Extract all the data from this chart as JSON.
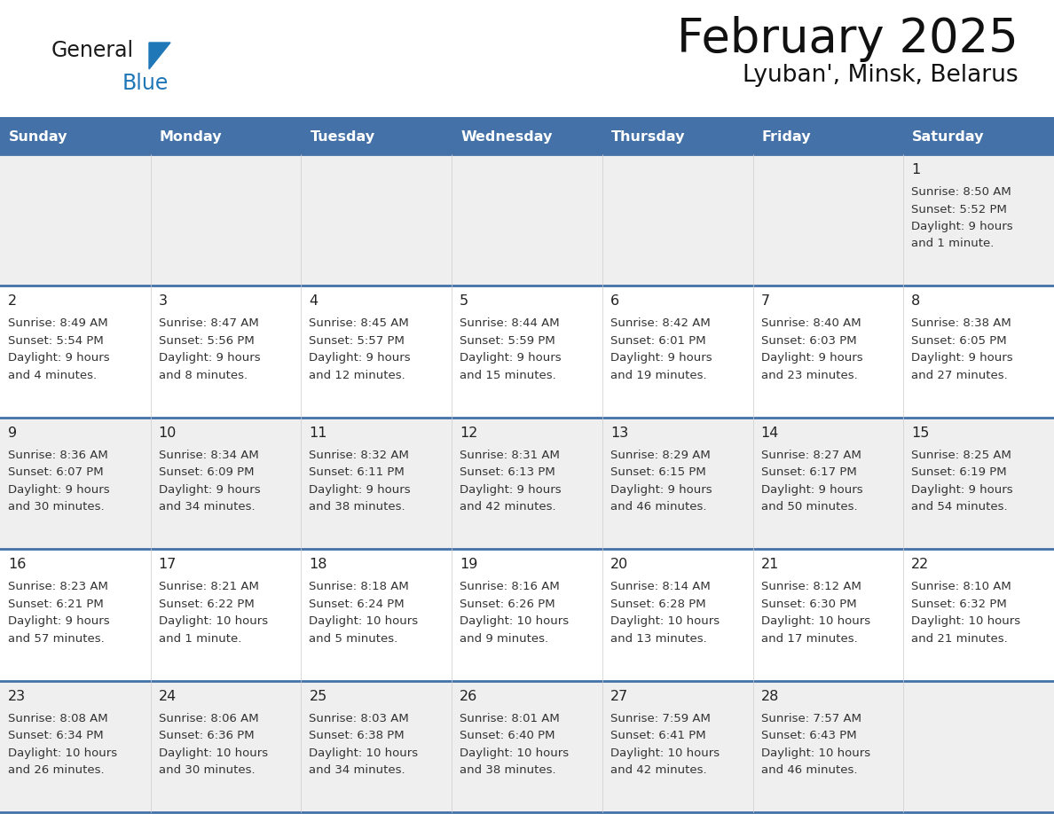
{
  "title": "February 2025",
  "subtitle": "Lyuban', Minsk, Belarus",
  "days_of_week": [
    "Sunday",
    "Monday",
    "Tuesday",
    "Wednesday",
    "Thursday",
    "Friday",
    "Saturday"
  ],
  "header_bg": "#4472a8",
  "header_text": "#ffffff",
  "row_bg_odd": "#efefef",
  "row_bg_even": "#ffffff",
  "separator_color": "#4472a8",
  "day_num_color": "#222222",
  "cell_text_color": "#333333",
  "title_color": "#111111",
  "subtitle_color": "#111111",
  "logo_general_color": "#1a1a1a",
  "logo_blue_color": "#2077b8",
  "calendar_data": [
    [
      null,
      null,
      null,
      null,
      null,
      null,
      {
        "day": "1",
        "sunrise": "8:50 AM",
        "sunset": "5:52 PM",
        "daylight_l1": "Daylight: 9 hours",
        "daylight_l2": "and 1 minute."
      }
    ],
    [
      {
        "day": "2",
        "sunrise": "8:49 AM",
        "sunset": "5:54 PM",
        "daylight_l1": "Daylight: 9 hours",
        "daylight_l2": "and 4 minutes."
      },
      {
        "day": "3",
        "sunrise": "8:47 AM",
        "sunset": "5:56 PM",
        "daylight_l1": "Daylight: 9 hours",
        "daylight_l2": "and 8 minutes."
      },
      {
        "day": "4",
        "sunrise": "8:45 AM",
        "sunset": "5:57 PM",
        "daylight_l1": "Daylight: 9 hours",
        "daylight_l2": "and 12 minutes."
      },
      {
        "day": "5",
        "sunrise": "8:44 AM",
        "sunset": "5:59 PM",
        "daylight_l1": "Daylight: 9 hours",
        "daylight_l2": "and 15 minutes."
      },
      {
        "day": "6",
        "sunrise": "8:42 AM",
        "sunset": "6:01 PM",
        "daylight_l1": "Daylight: 9 hours",
        "daylight_l2": "and 19 minutes."
      },
      {
        "day": "7",
        "sunrise": "8:40 AM",
        "sunset": "6:03 PM",
        "daylight_l1": "Daylight: 9 hours",
        "daylight_l2": "and 23 minutes."
      },
      {
        "day": "8",
        "sunrise": "8:38 AM",
        "sunset": "6:05 PM",
        "daylight_l1": "Daylight: 9 hours",
        "daylight_l2": "and 27 minutes."
      }
    ],
    [
      {
        "day": "9",
        "sunrise": "8:36 AM",
        "sunset": "6:07 PM",
        "daylight_l1": "Daylight: 9 hours",
        "daylight_l2": "and 30 minutes."
      },
      {
        "day": "10",
        "sunrise": "8:34 AM",
        "sunset": "6:09 PM",
        "daylight_l1": "Daylight: 9 hours",
        "daylight_l2": "and 34 minutes."
      },
      {
        "day": "11",
        "sunrise": "8:32 AM",
        "sunset": "6:11 PM",
        "daylight_l1": "Daylight: 9 hours",
        "daylight_l2": "and 38 minutes."
      },
      {
        "day": "12",
        "sunrise": "8:31 AM",
        "sunset": "6:13 PM",
        "daylight_l1": "Daylight: 9 hours",
        "daylight_l2": "and 42 minutes."
      },
      {
        "day": "13",
        "sunrise": "8:29 AM",
        "sunset": "6:15 PM",
        "daylight_l1": "Daylight: 9 hours",
        "daylight_l2": "and 46 minutes."
      },
      {
        "day": "14",
        "sunrise": "8:27 AM",
        "sunset": "6:17 PM",
        "daylight_l1": "Daylight: 9 hours",
        "daylight_l2": "and 50 minutes."
      },
      {
        "day": "15",
        "sunrise": "8:25 AM",
        "sunset": "6:19 PM",
        "daylight_l1": "Daylight: 9 hours",
        "daylight_l2": "and 54 minutes."
      }
    ],
    [
      {
        "day": "16",
        "sunrise": "8:23 AM",
        "sunset": "6:21 PM",
        "daylight_l1": "Daylight: 9 hours",
        "daylight_l2": "and 57 minutes."
      },
      {
        "day": "17",
        "sunrise": "8:21 AM",
        "sunset": "6:22 PM",
        "daylight_l1": "Daylight: 10 hours",
        "daylight_l2": "and 1 minute."
      },
      {
        "day": "18",
        "sunrise": "8:18 AM",
        "sunset": "6:24 PM",
        "daylight_l1": "Daylight: 10 hours",
        "daylight_l2": "and 5 minutes."
      },
      {
        "day": "19",
        "sunrise": "8:16 AM",
        "sunset": "6:26 PM",
        "daylight_l1": "Daylight: 10 hours",
        "daylight_l2": "and 9 minutes."
      },
      {
        "day": "20",
        "sunrise": "8:14 AM",
        "sunset": "6:28 PM",
        "daylight_l1": "Daylight: 10 hours",
        "daylight_l2": "and 13 minutes."
      },
      {
        "day": "21",
        "sunrise": "8:12 AM",
        "sunset": "6:30 PM",
        "daylight_l1": "Daylight: 10 hours",
        "daylight_l2": "and 17 minutes."
      },
      {
        "day": "22",
        "sunrise": "8:10 AM",
        "sunset": "6:32 PM",
        "daylight_l1": "Daylight: 10 hours",
        "daylight_l2": "and 21 minutes."
      }
    ],
    [
      {
        "day": "23",
        "sunrise": "8:08 AM",
        "sunset": "6:34 PM",
        "daylight_l1": "Daylight: 10 hours",
        "daylight_l2": "and 26 minutes."
      },
      {
        "day": "24",
        "sunrise": "8:06 AM",
        "sunset": "6:36 PM",
        "daylight_l1": "Daylight: 10 hours",
        "daylight_l2": "and 30 minutes."
      },
      {
        "day": "25",
        "sunrise": "8:03 AM",
        "sunset": "6:38 PM",
        "daylight_l1": "Daylight: 10 hours",
        "daylight_l2": "and 34 minutes."
      },
      {
        "day": "26",
        "sunrise": "8:01 AM",
        "sunset": "6:40 PM",
        "daylight_l1": "Daylight: 10 hours",
        "daylight_l2": "and 38 minutes."
      },
      {
        "day": "27",
        "sunrise": "7:59 AM",
        "sunset": "6:41 PM",
        "daylight_l1": "Daylight: 10 hours",
        "daylight_l2": "and 42 minutes."
      },
      {
        "day": "28",
        "sunrise": "7:57 AM",
        "sunset": "6:43 PM",
        "daylight_l1": "Daylight: 10 hours",
        "daylight_l2": "and 46 minutes."
      },
      null
    ]
  ]
}
